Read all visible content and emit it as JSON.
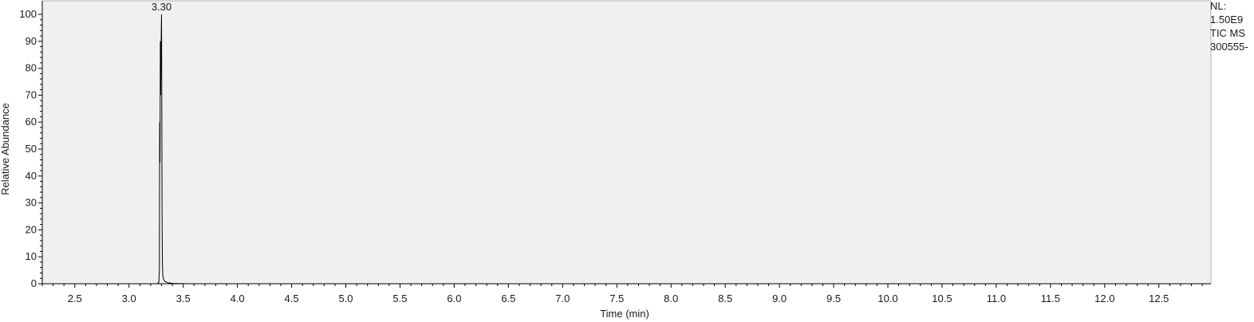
{
  "chart_data": {
    "type": "line",
    "xlabel": "Time (min)",
    "ylabel": "Relative Abundance",
    "xlim": [
      2.2,
      12.98
    ],
    "ylim": [
      0,
      100
    ],
    "x_ticks": [
      "2.5",
      "3.0",
      "3.5",
      "4.0",
      "4.5",
      "5.0",
      "5.5",
      "6.0",
      "6.5",
      "7.0",
      "7.5",
      "8.0",
      "8.5",
      "9.0",
      "9.5",
      "10.0",
      "10.5",
      "11.0",
      "11.5",
      "12.0",
      "12.5"
    ],
    "y_ticks": [
      "0",
      "10",
      "20",
      "30",
      "40",
      "50",
      "60",
      "70",
      "80",
      "90",
      "100"
    ],
    "peak_labels": [
      {
        "x": 3.3,
        "y": 100,
        "text": "3.30"
      }
    ],
    "info_lines": [
      "NL:",
      "1.50E9",
      "TIC  MS",
      "300555-"
    ],
    "plot_background": "#f0f0f0",
    "trace_color": "#000000",
    "series": [
      {
        "x": [
          2.2,
          3.26,
          3.275,
          3.28,
          3.283,
          3.286,
          3.289,
          3.292,
          3.295,
          3.298,
          3.3,
          3.302,
          3.305,
          3.308,
          3.312,
          3.318,
          3.325,
          3.335,
          3.35,
          3.37,
          3.4,
          3.45,
          3.5,
          3.55,
          12.98
        ],
        "y": [
          0,
          0,
          0.5,
          5,
          60,
          45,
          90,
          70,
          85,
          95,
          100,
          75,
          25,
          8,
          3,
          1.8,
          1.2,
          0.8,
          0.5,
          0.3,
          0.15,
          0.08,
          0.04,
          0,
          0
        ]
      }
    ]
  }
}
